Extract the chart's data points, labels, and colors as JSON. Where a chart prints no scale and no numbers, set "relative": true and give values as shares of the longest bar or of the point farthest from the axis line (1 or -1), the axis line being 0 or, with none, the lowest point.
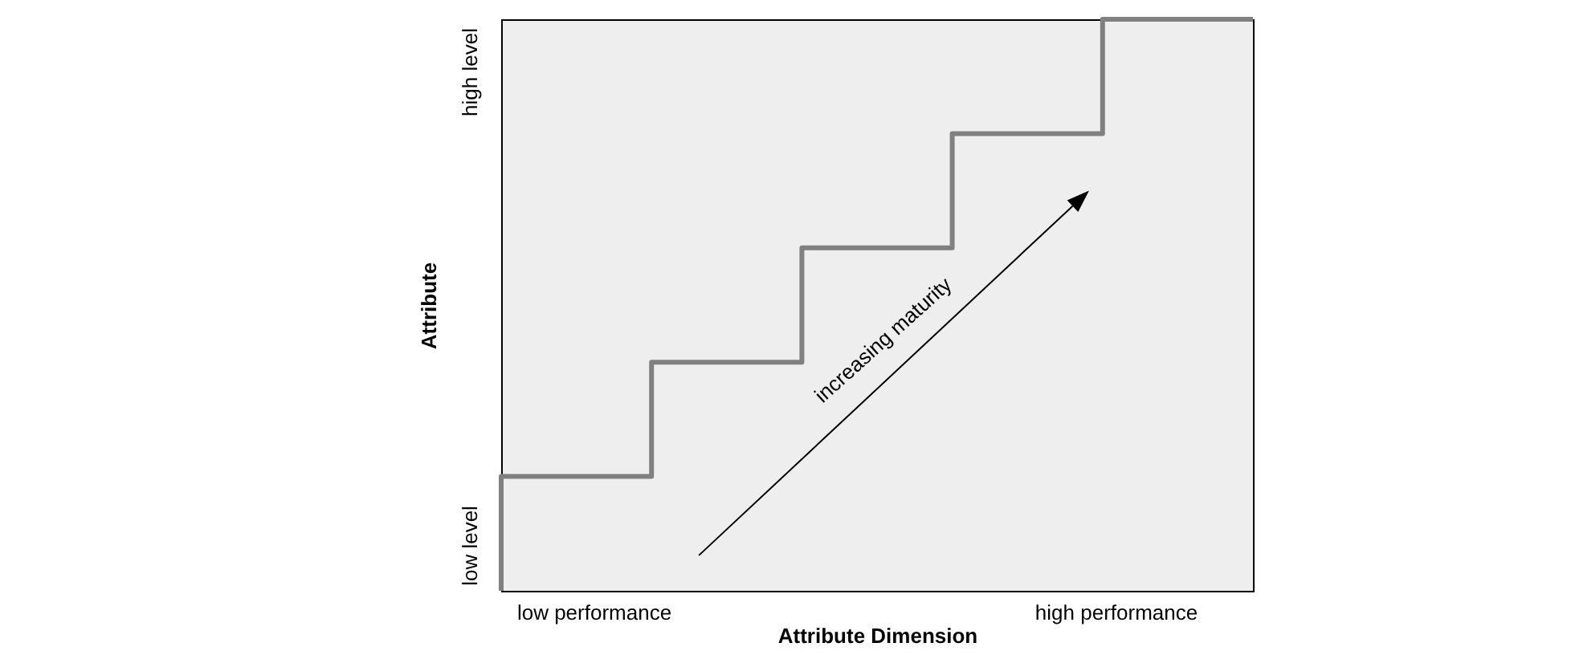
{
  "chart_data": {
    "type": "step",
    "relative": true,
    "xlabel": "Attribute Dimension",
    "ylabel": "Attribute",
    "categories": [
      null,
      null,
      null,
      null,
      null,
      null
    ],
    "values": [
      0,
      0.2,
      0.4,
      0.6,
      0.8,
      1
    ],
    "color": "#808080",
    "annotations": [
      "low level",
      "high level",
      "low performance",
      "high performance",
      "increasing maturity"
    ]
  }
}
